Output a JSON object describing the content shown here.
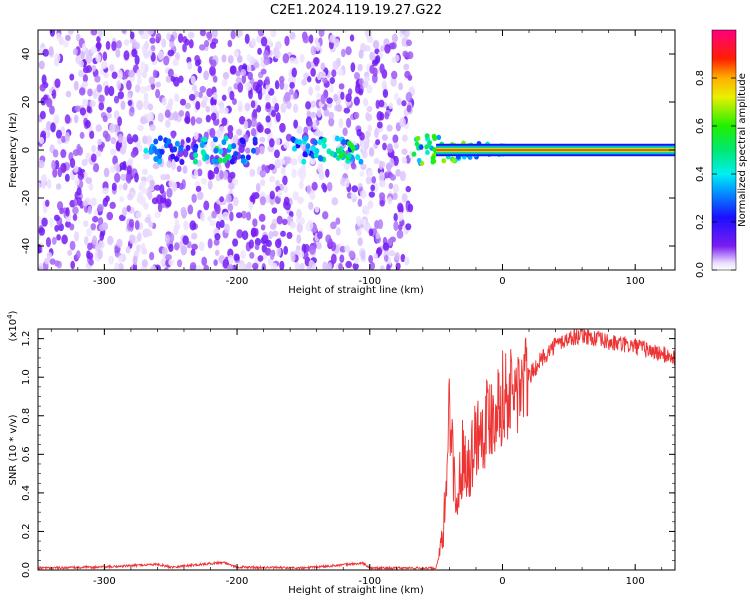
{
  "title": "C2E1.2024.119.19.27.G22",
  "colors": {
    "snr_line": "#ee3333",
    "axis": "#000000",
    "spectrogram_noise": "#7a1cf0",
    "spectrogram_signal_high": "#ff2200"
  },
  "chart_data": [
    {
      "type": "heatmap",
      "name": "spectrogram",
      "xlabel": "Height of straight line (km)",
      "ylabel": "Frequency (Hz)",
      "xlim": [
        -350,
        130
      ],
      "ylim": [
        -50,
        50
      ],
      "xticks": [
        -300,
        -200,
        -100,
        0,
        100
      ],
      "xtick_labels": [
        "-300",
        "-200",
        "-100",
        "0",
        "100"
      ],
      "yticks": [
        -40,
        -20,
        0,
        20,
        40
      ],
      "ytick_labels": [
        "-40",
        "-20",
        "0",
        "20",
        "40"
      ],
      "grid": false,
      "colorbar": {
        "label": "Normalized spectral amplitude",
        "range": [
          0,
          1
        ],
        "ticks": [
          0,
          0.2,
          0.4,
          0.6,
          0.8
        ],
        "tick_labels": [
          "0.0",
          "0.2",
          "0.4",
          "0.6",
          "0.8"
        ],
        "colormap": "rainbow (white-purple-blue-cyan-green-yellow-red-magenta)"
      },
      "description_regions": [
        {
          "x_range": [
            -350,
            -70
          ],
          "pattern": "broadband noise",
          "amplitude": 0.1
        },
        {
          "x_range": [
            -70,
            10
          ],
          "pattern": "signal emerging near 0 Hz",
          "amplitude": 0.5
        },
        {
          "x_range": [
            10,
            130
          ],
          "pattern": "clean carrier at 0 Hz",
          "amplitude": 0.9
        }
      ]
    },
    {
      "type": "line",
      "name": "snr",
      "xlabel": "Height of straight line (km)",
      "ylabel": "SNR (10 * v/v)",
      "y_multiplier_label": "(x10",
      "y_multiplier_exp": "4",
      "y_multiplier_close": ")",
      "xlim": [
        -350,
        130
      ],
      "ylim": [
        0,
        1.25
      ],
      "xticks": [
        -300,
        -200,
        -100,
        0,
        100
      ],
      "xtick_labels": [
        "-300",
        "-200",
        "-100",
        "0",
        "100"
      ],
      "yticks": [
        0,
        0.2,
        0.4,
        0.6,
        0.8,
        1.0,
        1.2
      ],
      "ytick_labels": [
        "0.0",
        "0.2",
        "0.4",
        "0.6",
        "0.8",
        "1.0",
        "1.2"
      ],
      "grid": false,
      "series": [
        {
          "color": "#ee3333",
          "x": [
            -350,
            -300,
            -260,
            -250,
            -210,
            -200,
            -150,
            -105,
            -100,
            -60,
            -50,
            -45,
            -42,
            -40,
            -35,
            -30,
            -25,
            -20,
            -15,
            -10,
            -5,
            0,
            10,
            20,
            30,
            40,
            50,
            60,
            70,
            80,
            90,
            100,
            110,
            120,
            130
          ],
          "y": [
            0.01,
            0.015,
            0.03,
            0.015,
            0.04,
            0.015,
            0.01,
            0.035,
            0.01,
            0.01,
            0.01,
            0.15,
            0.5,
            0.9,
            0.3,
            0.6,
            0.55,
            0.7,
            0.75,
            0.8,
            0.85,
            0.9,
            0.92,
            1.0,
            1.1,
            1.17,
            1.2,
            1.22,
            1.2,
            1.18,
            1.17,
            1.16,
            1.14,
            1.12,
            1.1
          ]
        }
      ]
    }
  ]
}
